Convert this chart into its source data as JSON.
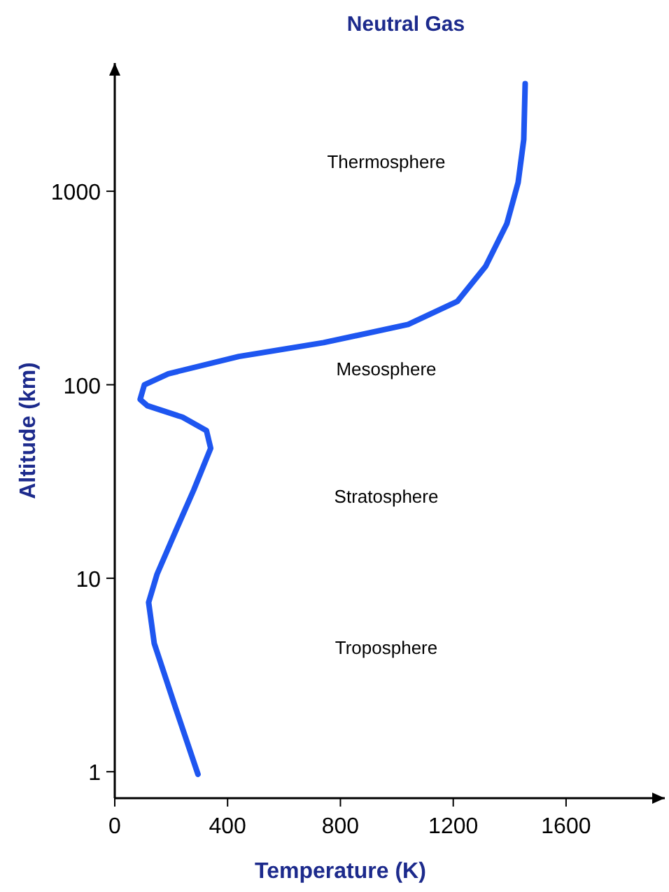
{
  "chart_data": {
    "type": "line",
    "title": "Neutral Gas",
    "xlabel": "Temperature (K)",
    "ylabel": "Altitude (km)",
    "x": [
      295,
      215,
      140,
      120,
      150,
      215,
      280,
      340,
      325,
      240,
      115,
      90,
      105,
      190,
      440,
      740,
      1040,
      1215,
      1315,
      1390,
      1430,
      1450,
      1455
    ],
    "series": [
      {
        "color": "#1e56f0",
        "values": [
          0.97,
          2.15,
          4.6,
          7.5,
          10.5,
          17.4,
          28.6,
          47,
          58,
          68,
          78,
          84,
          100,
          114,
          140,
          165,
          205,
          270,
          410,
          680,
          1110,
          1850,
          3600
        ]
      }
    ],
    "xlim": [
      0,
      1950
    ],
    "ylim": [
      0.73,
      4600
    ],
    "xticks": [
      0,
      400,
      800,
      1200,
      1600
    ],
    "yticks": [
      1,
      10,
      100,
      1000
    ],
    "log": "y",
    "grid": false,
    "marker": "none",
    "line_style": "solid",
    "annotations": [
      "Thermosphere",
      "Mesosphere",
      "Stratosphere",
      "Troposphere"
    ]
  }
}
